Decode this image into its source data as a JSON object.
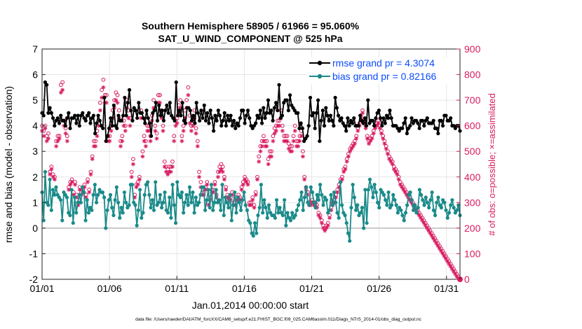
{
  "chart_data": {
    "type": "line",
    "title_line1": "Southern Hemisphere 58905 / 61966 = 95.060%",
    "title_line2": "SAT_U_WIND_COMPONENT @ 525 hPa",
    "xlabel": "Jan.01,2014 00:00:00 start",
    "ylabel_left": "rmse and bias (model - observation)",
    "ylabel_right": "# of obs: o=possible; ×=assimilated",
    "footer": "data file: /Users/raeder/DAI/ATM_forcXX/CAM6_setup/f.e21.FHIST_BGC.f09_025.CAM6assim.011/Diags_NTrS_2014-01/obs_diag_output.nc",
    "xlim": [
      0,
      31
    ],
    "ylim_left": [
      -2,
      7
    ],
    "ylim_right": [
      0,
      900
    ],
    "x_ticks": [
      0,
      5,
      10,
      15,
      20,
      25,
      30
    ],
    "x_tick_labels": [
      "01/01",
      "01/06",
      "01/11",
      "01/16",
      "01/21",
      "01/26",
      "01/31"
    ],
    "y_left_ticks": [
      -2,
      -1,
      0,
      1,
      2,
      3,
      4,
      5,
      6,
      7
    ],
    "y_right_ticks": [
      0,
      100,
      200,
      300,
      400,
      500,
      600,
      700,
      800,
      900
    ],
    "legend": [
      {
        "label": "rmse grand pr = 4.3074",
        "color": "#000000"
      },
      {
        "label": "bias grand pr = 0.82166",
        "color": "#1a8a8a"
      }
    ],
    "colors": {
      "rmse": "#000000",
      "bias": "#1a8a8a",
      "obs": "#d81b60",
      "label_blue": "#0a4bff",
      "zero_line": "#bbbbbb"
    },
    "rmse": [
      4.5,
      4.4,
      5.7,
      5.6,
      4.5,
      4.7,
      4.5,
      4.3,
      4.0,
      4.2,
      4.3,
      4.1,
      4.4,
      4.2,
      4.2,
      4.0,
      4.3,
      4.5,
      3.9,
      4.3,
      4.3,
      4.4,
      4.1,
      4.4,
      4.0,
      4.4,
      4.5,
      4.3,
      4.2,
      4.4,
      4.5,
      4.1,
      4.3,
      4.4,
      3.7,
      4.1,
      4.4,
      4.2,
      4.0,
      3.9,
      5.1,
      3.4,
      3.6,
      3.9,
      4.3,
      4.0,
      4.8,
      4.0,
      3.9,
      4.4,
      4.2,
      4.2,
      4.4,
      5.1,
      4.4,
      4.9,
      5.4,
      4.6,
      4.2,
      4.7,
      4.6,
      4.3,
      4.9,
      4.5,
      4.5,
      4.3,
      4.1,
      4.6,
      4.3,
      4.1,
      3.6,
      4.5,
      4.6,
      4.9,
      4.2,
      4.8,
      4.4,
      4.6,
      4.2,
      4.6,
      4.8,
      4.5,
      4.9,
      4.4,
      4.3,
      4.2,
      5.7,
      4.4,
      4.6,
      4.4,
      4.9,
      4.2,
      4.1,
      4.7,
      4.7,
      4.6,
      4.2,
      4.4,
      4.1,
      4.9,
      4.5,
      4.2,
      4.6,
      4.3,
      4.8,
      4.2,
      4.5,
      4.1,
      4.6,
      4.3,
      3.8,
      4.4,
      4.2,
      4.6,
      4.4,
      4.0,
      4.2,
      4.5,
      4.0,
      4.4,
      4.2,
      4.4,
      4.0,
      4.2,
      3.9,
      4.1,
      4.0,
      4.3,
      4.6,
      4.6,
      4.1,
      4.4,
      4.6,
      4.3,
      4.0,
      3.9,
      4.0,
      4.1,
      4.4,
      4.3,
      4.6,
      4.1,
      4.7,
      4.3,
      4.5,
      5.0,
      4.5,
      4.6,
      4.2,
      4.7,
      4.9,
      4.6,
      5.6,
      4.3,
      4.4,
      4.9,
      5.0,
      5.0,
      4.6,
      5.2,
      4.8,
      4.7,
      4.6,
      4.5,
      4.5,
      3.9,
      4.1,
      3.9,
      3.4,
      3.5,
      3.6,
      4.0,
      5.1,
      4.4,
      4.5,
      3.9,
      4.5,
      5.0,
      3.4,
      4.2,
      4.6,
      4.0,
      4.7,
      4.4,
      4.2,
      4.4,
      4.2,
      4.0,
      5.1,
      4.7,
      4.4,
      4.2,
      4.3,
      4.1,
      4.0,
      3.8,
      4.3,
      4.0,
      4.2,
      4.1,
      4.3,
      4.0,
      4.0,
      4.0,
      4.4,
      4.2,
      4.1,
      4.3,
      4.0,
      5.0,
      4.1,
      4.2,
      4.2,
      4.0,
      4.3,
      4.5,
      4.6,
      4.3,
      4.0,
      4.3,
      4.1,
      4.4,
      4.3,
      4.6,
      4.3,
      4.0,
      4.0,
      4.0,
      3.9,
      3.8,
      3.9,
      3.9,
      4.1,
      4.3,
      3.7,
      3.9,
      4.0,
      4.3,
      4.1,
      4.2,
      4.2,
      4.1,
      3.9,
      4.2,
      4.2,
      4.0,
      4.2,
      4.3,
      4.1,
      4.1,
      4.1,
      4.2,
      3.9,
      3.9,
      3.7,
      4.2,
      4.2,
      4.0,
      4.4,
      4.4,
      4.2,
      4.2,
      4.3,
      4.0,
      4.0,
      3.9,
      4.0,
      4.0,
      3.8
    ],
    "bias": [
      1.4,
      0.3,
      2.2,
      1.0,
      0.9,
      1.9,
      0.7,
      1.5,
      1.3,
      1.6,
      1.3,
      1.2,
      1.1,
      0.3,
      1.4,
      1.3,
      1.2,
      0.6,
      0.5,
      1.5,
      0.2,
      1.2,
      0.6,
      1.0,
      1.3,
      1.0,
      1.6,
      1.4,
      0.3,
      1.1,
      0.6,
      0.8,
      0.7,
      1.3,
      1.7,
      1.0,
      1.3,
      1.5,
      1.4,
      1.4,
      1.2,
      0.0,
      0.7,
      1.1,
      1.3,
      0.8,
      0.5,
      1.1,
      1.6,
      1.0,
      0.4,
      0.8,
      0.6,
      1.4,
      1.0,
      0.8,
      0.9,
      1.7,
      1.7,
      1.0,
      0.9,
      0.1,
      0.7,
      1.5,
      0.4,
      0.6,
      1.3,
      1.7,
      1.8,
      1.3,
      0.8,
      1.1,
      0.7,
      1.8,
      0.9,
      1.0,
      1.3,
      0.8,
      1.0,
      1.4,
      0.7,
      0.6,
      1.2,
      0.4,
      1.7,
      0.9,
      0.2,
      1.8,
      1.3,
      1.2,
      1.4,
      0.6,
      1.0,
      1.3,
      0.9,
      1.6,
      1.0,
      1.4,
      0.6,
      1.2,
      0.9,
      1.0,
      1.3,
      1.6,
      1.6,
      0.7,
      1.1,
      1.5,
      0.8,
      1.7,
      0.7,
      1.0,
      1.5,
      1.0,
      1.1,
      0.7,
      1.7,
      0.5,
      1.2,
      1.0,
      0.8,
      1.3,
      0.3,
      0.9,
      1.4,
      0.6,
      1.2,
      1.0,
      0.7,
      1.1,
      1.4,
      0.9,
      0.7,
      0.3,
      0.2,
      -0.2,
      -0.3,
      0.2,
      -0.2,
      0.5,
      0.8,
      1.7,
      0.6,
      1.1,
      0.8,
      0.4,
      0.9,
      0.6,
      0.5,
      0.5,
      0.4,
      1.1,
      0.6,
      0.8,
      0.6,
      0.5,
      1.1,
      0.1,
      0.6,
      0.4,
      0.3,
      0.6,
      0.4,
      0.5,
      0.7,
      0.9,
      1.1,
      1.4,
      0.7,
      1.2,
      1.6,
      1.0,
      0.9,
      1.6,
      1.4,
      1.0,
      0.8,
      1.3,
      1.1,
      1.7,
      1.3,
      0.9,
      1.2,
      1.1,
      0.6,
      0.7,
      1.3,
      0.9,
      1.4,
      1.0,
      0.6,
      0.4,
      1.8,
      0.9,
      0.6,
      0.5,
      0.2,
      -0.2,
      -0.5,
      0.8,
      1.7,
      1.2,
      0.7,
      0.9,
      0.5,
      0.6,
      0.8,
      0.0,
      1.5,
      0.2,
      1.5,
      1.9,
      1.6,
      1.2,
      1.7,
      1.4,
      1.0,
      0.8,
      1.5,
      1.4,
      1.3,
      1.1,
      0.9,
      1.4,
      0.8,
      0.9,
      1.3,
      1.1,
      0.9,
      0.6,
      0.8,
      0.7,
      0.5,
      0.3,
      0.6,
      0.9,
      1.3,
      1.4,
      1.1,
      0.7,
      0.9,
      0.6,
      0.8,
      1.5,
      1.3,
      1.1,
      0.9,
      1.2,
      1.0,
      0.8,
      1.1,
      1.4,
      0.7,
      0.5,
      1.0,
      1.2,
      0.9,
      0.8,
      1.1,
      1.0,
      0.7,
      0.4,
      0.6,
      0.9,
      1.1,
      0.8,
      0.6,
      0.7,
      0.9,
      0.5
    ],
    "obs_possible": [
      600,
      580,
      600,
      560,
      570,
      420,
      440,
      410,
      400,
      540,
      560,
      560,
      760,
      770,
      620,
      590,
      560,
      360,
      380,
      390,
      340,
      380,
      330,
      300,
      360,
      340,
      350,
      370,
      330,
      390,
      350,
      420,
      480,
      540,
      540,
      580,
      620,
      690,
      740,
      780,
      720,
      720,
      560,
      560,
      600,
      660,
      700,
      730,
      720,
      660,
      540,
      560,
      620,
      600,
      700,
      660,
      630,
      420,
      470,
      330,
      370,
      380,
      400,
      660,
      500,
      560,
      540,
      600,
      600,
      560,
      640,
      700,
      600,
      570,
      720,
      720,
      660,
      600,
      460,
      440,
      430,
      440,
      440,
      460,
      560,
      620,
      630,
      680,
      700,
      560,
      600,
      660,
      700,
      750,
      640,
      600,
      620,
      660,
      590,
      540,
      420,
      380,
      340,
      340,
      360,
      380,
      300,
      320,
      350,
      350,
      380,
      330,
      420,
      440,
      450,
      440,
      400,
      360,
      330,
      320,
      320,
      340,
      300,
      300,
      320,
      330,
      320,
      360,
      380,
      400,
      390,
      380,
      300,
      300,
      320,
      290,
      340,
      400,
      480,
      520,
      540,
      560,
      540,
      540,
      470,
      500,
      500,
      560,
      590,
      600,
      620,
      620,
      660,
      600,
      560,
      560,
      560,
      530,
      520,
      520,
      560,
      600,
      540,
      540,
      560,
      580,
      500,
      400,
      360,
      340,
      300,
      300,
      310,
      300,
      300,
      290,
      260,
      250,
      230,
      210,
      200,
      210,
      220,
      250,
      280,
      300,
      310,
      330,
      350,
      370,
      390,
      400,
      430,
      440,
      470,
      490,
      510,
      520,
      530,
      540,
      560,
      590,
      610,
      640,
      660,
      620,
      600,
      560,
      540,
      550,
      560,
      580,
      600,
      610,
      620,
      600,
      580,
      560,
      540,
      520,
      500,
      480,
      470,
      460,
      440,
      430,
      420,
      400,
      380,
      370,
      360,
      350,
      340,
      330,
      320,
      310,
      300,
      290,
      280,
      270,
      260,
      250,
      240,
      230,
      220,
      210,
      200,
      190,
      180,
      170,
      160,
      150,
      140,
      130,
      120,
      110,
      100,
      90,
      80,
      70,
      60,
      50,
      40,
      30,
      20,
      10,
      0
    ],
    "obs_assimilated": [
      580,
      560,
      590,
      540,
      550,
      410,
      430,
      400,
      390,
      520,
      540,
      550,
      730,
      740,
      600,
      570,
      540,
      350,
      370,
      380,
      330,
      370,
      320,
      290,
      350,
      330,
      340,
      360,
      320,
      380,
      340,
      410,
      470,
      520,
      520,
      560,
      600,
      660,
      710,
      750,
      690,
      690,
      540,
      540,
      580,
      630,
      670,
      700,
      690,
      630,
      520,
      540,
      600,
      580,
      670,
      630,
      600,
      400,
      450,
      320,
      360,
      370,
      390,
      630,
      480,
      540,
      520,
      580,
      580,
      540,
      620,
      670,
      580,
      550,
      690,
      690,
      630,
      580,
      440,
      420,
      410,
      420,
      420,
      440,
      540,
      600,
      610,
      650,
      670,
      540,
      580,
      630,
      670,
      720,
      610,
      580,
      600,
      630,
      570,
      520,
      400,
      360,
      330,
      330,
      350,
      370,
      290,
      310,
      340,
      340,
      370,
      320,
      400,
      420,
      430,
      420,
      390,
      350,
      320,
      310,
      310,
      330,
      290,
      290,
      310,
      320,
      310,
      350,
      370,
      390,
      380,
      370,
      290,
      290,
      310,
      280,
      330,
      390,
      460,
      500,
      520,
      540,
      520,
      520,
      450,
      480,
      480,
      540,
      570,
      580,
      600,
      600,
      630,
      580,
      540,
      540,
      540,
      510,
      500,
      500,
      540,
      580,
      520,
      520,
      540,
      560,
      480,
      390,
      350,
      330,
      290,
      290,
      300,
      290,
      290,
      280,
      250,
      240,
      220,
      200,
      190,
      200,
      210,
      240,
      270,
      290,
      300,
      320,
      340,
      360,
      380,
      390,
      420,
      430,
      460,
      480,
      500,
      510,
      520,
      530,
      550,
      580,
      600,
      630,
      650,
      610,
      590,
      550,
      530,
      540,
      550,
      570,
      590,
      600,
      610,
      590,
      570,
      550,
      530,
      510,
      490,
      470,
      460,
      450,
      430,
      420,
      410,
      390,
      370,
      360,
      350,
      340,
      330,
      320,
      310,
      300,
      290,
      280,
      270,
      260,
      250,
      240,
      230,
      220,
      210,
      200,
      190,
      180,
      170,
      160,
      150,
      140,
      130,
      120,
      110,
      100,
      90,
      80,
      70,
      60,
      50,
      40,
      30,
      20,
      10,
      0
    ]
  }
}
